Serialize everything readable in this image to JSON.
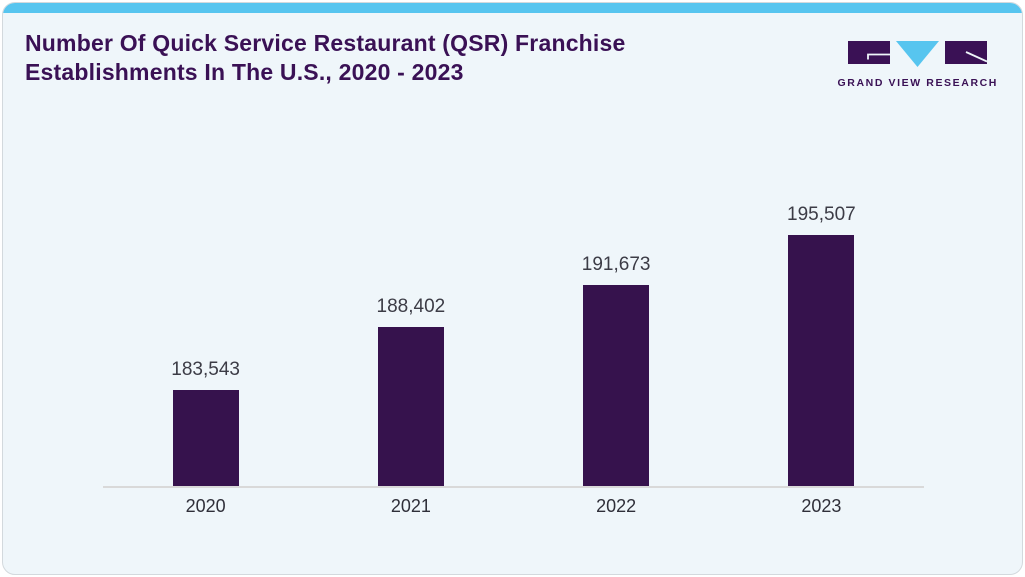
{
  "page": {
    "card_bg": "#eff6fa",
    "accent_blue": "#57c5ef",
    "card_border": "#d3d9dd"
  },
  "header": {
    "title_lines": [
      "Number Of Quick Service Restaurant (QSR) Franchise",
      "Establishments In The U.S., 2020 - 2023"
    ],
    "title_color": "#3a1155"
  },
  "logo": {
    "brand": "Grand View Research",
    "text": "GRAND VIEW RESEARCH",
    "icon_names": [
      "gvr-g-block-icon",
      "gvr-v-triangle-icon",
      "gvr-r-block-icon"
    ],
    "purple": "#3a1155",
    "blue": "#57c5ef"
  },
  "chart_data": {
    "type": "bar",
    "title": "Number Of Quick Service Restaurant (QSR) Franchise Establishments In The U.S., 2020 - 2023",
    "categories": [
      "2020",
      "2021",
      "2022",
      "2023"
    ],
    "values": [
      183543,
      188402,
      191673,
      195507
    ],
    "value_labels": [
      "183,543",
      "188,402",
      "191,673",
      "195,507"
    ],
    "xlabel": "",
    "ylabel": "",
    "ylim": [
      176100,
      196000
    ],
    "grid": false,
    "legend": false,
    "bar_color": "#36124d",
    "value_label_color": "#3c3c46",
    "axis_line_color": "#d9d9d9"
  }
}
